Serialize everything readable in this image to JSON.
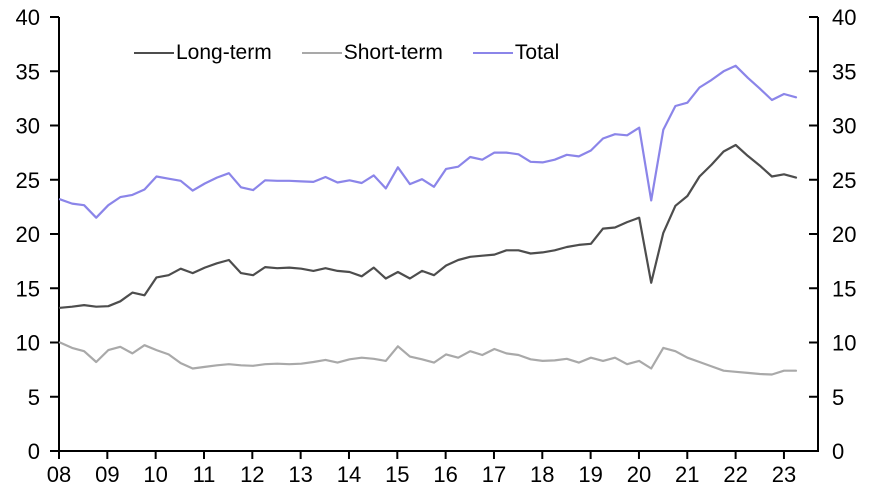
{
  "chart_data": {
    "type": "line",
    "title": "",
    "grid": false,
    "legend_position": "top-center",
    "x_axis": {
      "frequency": "quarterly",
      "start_period": "2008Q1",
      "end_period": "2023Q2",
      "tick_labels": [
        "08",
        "09",
        "10",
        "11",
        "12",
        "13",
        "14",
        "15",
        "16",
        "17",
        "18",
        "19",
        "20",
        "21",
        "22",
        "23"
      ]
    },
    "y_axis": {
      "min": 0,
      "max": 40,
      "tick_step": 5,
      "tick_labels": [
        "0",
        "5",
        "10",
        "15",
        "20",
        "25",
        "30",
        "35",
        "40"
      ],
      "mirrored_right_axis": true
    },
    "series": [
      {
        "name": "Long-term",
        "color": "#4d4d4d",
        "values": [
          13.2,
          13.3,
          13.45,
          13.3,
          13.35,
          13.8,
          14.6,
          14.35,
          16.0,
          16.2,
          16.8,
          16.4,
          16.9,
          17.3,
          17.6,
          16.4,
          16.2,
          16.95,
          16.85,
          16.9,
          16.8,
          16.6,
          16.85,
          16.6,
          16.5,
          16.1,
          16.9,
          15.9,
          16.5,
          15.9,
          16.6,
          16.2,
          17.1,
          17.6,
          17.9,
          18.0,
          18.1,
          18.5,
          18.5,
          18.2,
          18.3,
          18.5,
          18.8,
          19.0,
          19.1,
          20.5,
          20.6,
          21.1,
          21.5,
          15.5,
          20.1,
          22.6,
          23.5,
          25.3,
          26.4,
          27.6,
          28.2,
          27.2,
          26.3,
          25.3,
          25.5,
          25.2
        ]
      },
      {
        "name": "Short-term",
        "color": "#a9a9a9",
        "values": [
          10.0,
          9.5,
          9.2,
          8.2,
          9.3,
          9.6,
          9.0,
          9.75,
          9.3,
          8.9,
          8.1,
          7.6,
          7.75,
          7.9,
          8.0,
          7.9,
          7.85,
          8.0,
          8.05,
          8.0,
          8.05,
          8.2,
          8.4,
          8.15,
          8.45,
          8.6,
          8.5,
          8.3,
          9.65,
          8.7,
          8.45,
          8.15,
          8.9,
          8.6,
          9.2,
          8.85,
          9.4,
          9.0,
          8.85,
          8.45,
          8.3,
          8.35,
          8.5,
          8.15,
          8.6,
          8.3,
          8.6,
          8.0,
          8.3,
          7.6,
          9.5,
          9.2,
          8.6,
          8.2,
          7.8,
          7.4,
          7.3,
          7.2,
          7.1,
          7.05,
          7.4,
          7.4
        ]
      },
      {
        "name": "Total",
        "color": "#8b85e9",
        "values": [
          23.2,
          22.8,
          22.65,
          21.5,
          22.65,
          23.4,
          23.6,
          24.1,
          25.3,
          25.1,
          24.9,
          24.0,
          24.65,
          25.2,
          25.6,
          24.3,
          24.05,
          24.95,
          24.9,
          24.9,
          24.85,
          24.8,
          25.25,
          24.75,
          24.95,
          24.7,
          25.4,
          24.2,
          26.15,
          24.6,
          25.05,
          24.35,
          26.0,
          26.2,
          27.1,
          26.85,
          27.5,
          27.5,
          27.35,
          26.65,
          26.6,
          26.85,
          27.3,
          27.15,
          27.7,
          28.8,
          29.2,
          29.1,
          29.8,
          23.1,
          29.6,
          31.8,
          32.1,
          33.5,
          34.2,
          35.0,
          35.5,
          34.4,
          33.4,
          32.35,
          32.9,
          32.6
        ]
      }
    ]
  }
}
